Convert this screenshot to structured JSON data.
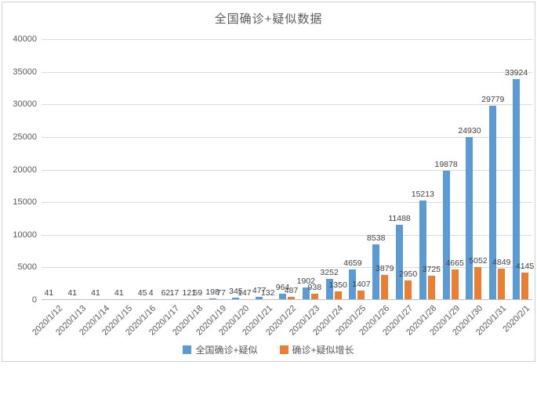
{
  "title": "全国确诊+疑似数据",
  "colors": {
    "series_total": "#5B9BD5",
    "series_growth": "#ED7D31",
    "gridline": "#D9D9D9",
    "axis": "#BFBFBF",
    "title_text": "#595959",
    "tick_text": "#595959",
    "data_label_text": "#404040",
    "frame_border": "#CFCFCF"
  },
  "chart_data": {
    "type": "bar",
    "title": "全国确诊+疑似数据",
    "categories": [
      "2020/1/12",
      "2020/1/13",
      "2020/1/14",
      "2020/1/15",
      "2020/1/16",
      "2020/1/17",
      "2020/1/18",
      "2020/1/19",
      "2020/1/20",
      "2020/1/21",
      "2020/1/22",
      "2020/1/23",
      "2020/1/24",
      "2020/1/25",
      "2020/1/26",
      "2020/1/27",
      "2020/1/28",
      "2020/1/29",
      "2020/1/30",
      "2020/1/31",
      "2020/2/1"
    ],
    "series": [
      {
        "name": "全国确诊+疑似",
        "color": "#5B9BD5",
        "values": [
          41,
          41,
          41,
          41,
          45,
          62,
          121,
          198,
          345,
          477,
          964,
          1902,
          3252,
          4659,
          8538,
          11488,
          15213,
          19878,
          24930,
          29779,
          33924
        ]
      },
      {
        "name": "确诊+疑似增长",
        "color": "#ED7D31",
        "values": [
          null,
          null,
          null,
          null,
          4,
          17,
          59,
          77,
          147,
          132,
          487,
          938,
          1350,
          1407,
          3879,
          2950,
          3725,
          4665,
          5052,
          4849,
          4145
        ]
      }
    ],
    "xlabel": "",
    "ylabel": "",
    "ylim": [
      0,
      40000
    ],
    "ytick_step": 5000,
    "yticks": [
      "0",
      "5000",
      "10000",
      "15000",
      "20000",
      "25000",
      "30000",
      "35000",
      "40000"
    ],
    "grid": true,
    "data_labels": true,
    "legend_position": "bottom"
  },
  "legend": {
    "items": [
      {
        "label": "全国确诊+疑似",
        "color": "#5B9BD5"
      },
      {
        "label": "确诊+疑似增长",
        "color": "#ED7D31"
      }
    ]
  }
}
